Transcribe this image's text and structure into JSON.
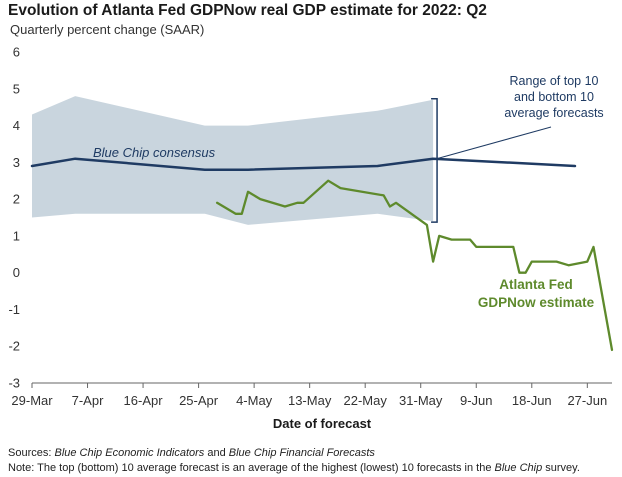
{
  "header": {
    "title": "Evolution of Atlanta Fed GDPNow real GDP estimate for 2022: Q2",
    "subtitle": "Quarterly percent change (SAAR)"
  },
  "footer": {
    "sources_label": "Sources:",
    "sources_part1": "Blue Chip Economic Indicators",
    "sources_and": " and ",
    "sources_part2": "Blue Chip Financial Forecasts",
    "note_label": "Note:",
    "note_text": " The top (bottom) 10 average forecast is an average of the highest (lowest) 10 forecasts in the ",
    "note_ital": "Blue Chip",
    "note_end": " survey."
  },
  "annotations": {
    "blue_chip": "Blue Chip consensus",
    "range_line1": "Range of top 10",
    "range_line2": "and bottom 10",
    "range_line3": "average forecasts",
    "gdpnow_line1": "Atlanta Fed",
    "gdpnow_line2": "GDPNow estimate"
  },
  "colors": {
    "consensus": "#1f3b63",
    "gdpnow": "#5e8a2c",
    "band": "#c9d5de",
    "axis": "#666666"
  },
  "chart_data": {
    "type": "line",
    "title": "Evolution of Atlanta Fed GDPNow real GDP estimate for 2022: Q2",
    "subtitle": "Quarterly percent change (SAAR)",
    "xlabel": "Date of forecast",
    "ylabel": "",
    "ylim": [
      -3,
      6
    ],
    "yticks": [
      "6",
      "5",
      "4",
      "3",
      "2",
      "1",
      "0",
      "-1",
      "-2",
      "-3"
    ],
    "xticks": [
      "29-Mar",
      "7-Apr",
      "16-Apr",
      "25-Apr",
      "4-May",
      "13-May",
      "22-May",
      "31-May",
      "9-Jun",
      "18-Jun",
      "27-Jun"
    ],
    "x_date_range": [
      "2022-03-29",
      "2022-07-01"
    ],
    "grid": false,
    "series": [
      {
        "name": "Blue Chip consensus",
        "x": [
          "2022-03-29",
          "2022-04-05",
          "2022-04-26",
          "2022-05-03",
          "2022-05-24",
          "2022-06-02",
          "2022-06-25"
        ],
        "values": [
          2.9,
          3.1,
          2.8,
          2.8,
          2.9,
          3.1,
          2.9
        ]
      },
      {
        "name": "Range of top 10 average forecasts",
        "x": [
          "2022-03-29",
          "2022-04-05",
          "2022-04-26",
          "2022-05-03",
          "2022-05-24",
          "2022-06-02"
        ],
        "values": [
          4.3,
          4.8,
          4.0,
          4.0,
          4.4,
          4.7
        ]
      },
      {
        "name": "Range of bottom 10 average forecasts",
        "x": [
          "2022-03-29",
          "2022-04-05",
          "2022-04-26",
          "2022-05-03",
          "2022-05-24",
          "2022-06-02"
        ],
        "values": [
          1.5,
          1.6,
          1.6,
          1.3,
          1.6,
          1.4
        ]
      },
      {
        "name": "Atlanta Fed GDPNow estimate",
        "x": [
          "2022-04-28",
          "2022-05-01",
          "2022-05-02",
          "2022-05-03",
          "2022-05-05",
          "2022-05-09",
          "2022-05-11",
          "2022-05-12",
          "2022-05-16",
          "2022-05-18",
          "2022-05-25",
          "2022-05-26",
          "2022-05-27",
          "2022-06-01",
          "2022-06-02",
          "2022-06-03",
          "2022-06-05",
          "2022-06-08",
          "2022-06-09",
          "2022-06-15",
          "2022-06-16",
          "2022-06-17",
          "2022-06-18",
          "2022-06-22",
          "2022-06-24",
          "2022-06-27",
          "2022-06-28",
          "2022-07-01"
        ],
        "values": [
          1.9,
          1.6,
          1.6,
          2.2,
          2.0,
          1.8,
          1.9,
          1.9,
          2.5,
          2.3,
          2.1,
          1.8,
          1.9,
          1.3,
          0.3,
          1.0,
          0.9,
          0.9,
          0.7,
          0.7,
          0.0,
          0.0,
          0.3,
          0.3,
          0.2,
          0.3,
          0.7,
          -2.1
        ]
      }
    ]
  }
}
